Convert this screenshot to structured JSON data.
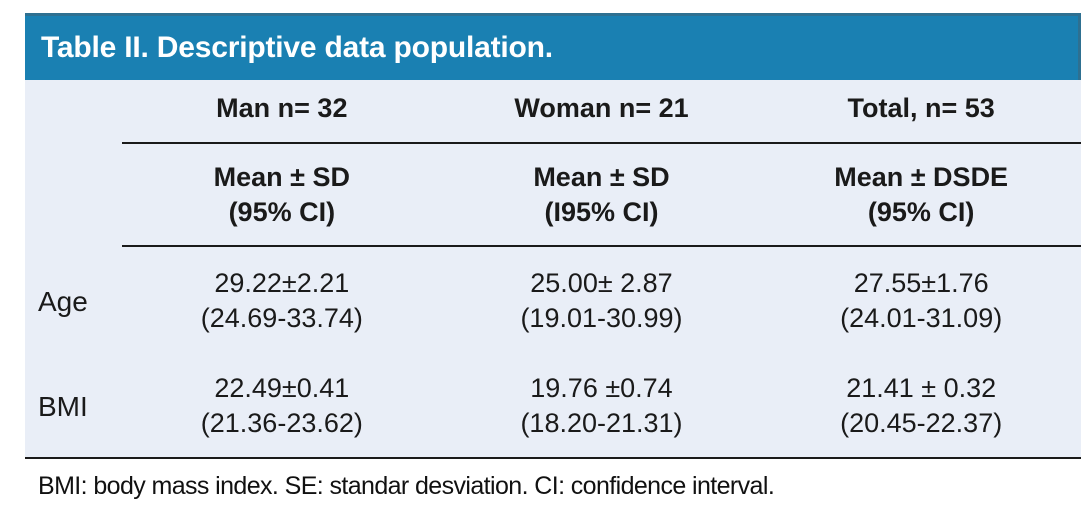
{
  "title": "Table II. Descriptive data population.",
  "colors": {
    "title_bar_bg": "#1a80b2",
    "title_bar_edge": "#2e7091",
    "title_text": "#ffffff",
    "table_body_bg": "#e9eef7",
    "rule_color": "#1a1a1a",
    "text_color": "#1a1a1a"
  },
  "columns": [
    {
      "label": "Man n= 32"
    },
    {
      "label": "Woman n= 21"
    },
    {
      "label": "Total, n= 53"
    }
  ],
  "subheaders": [
    {
      "line1": "Mean ± SD",
      "line2": "(95% CI)"
    },
    {
      "line1": "Mean ± SD",
      "line2": "(I95% CI)"
    },
    {
      "line1": "Mean ± DSDE",
      "line2": "(95% CI)"
    }
  ],
  "rows": [
    {
      "label": "Age",
      "cells": [
        {
          "value": "29.22±2.21",
          "ci": "(24.69-33.74)"
        },
        {
          "value": "25.00± 2.87",
          "ci": "(19.01-30.99)"
        },
        {
          "value": "27.55±1.76",
          "ci": "(24.01-31.09)"
        }
      ]
    },
    {
      "label": "BMI",
      "cells": [
        {
          "value": "22.49±0.41",
          "ci": "(21.36-23.62)"
        },
        {
          "value": "19.76 ±0.74",
          "ci": "(18.20-21.31)"
        },
        {
          "value": "21.41 ± 0.32",
          "ci": "(20.45-22.37)"
        }
      ]
    }
  ],
  "footnote": "BMI: body mass index. SE: standar desviation. CI: confidence interval."
}
